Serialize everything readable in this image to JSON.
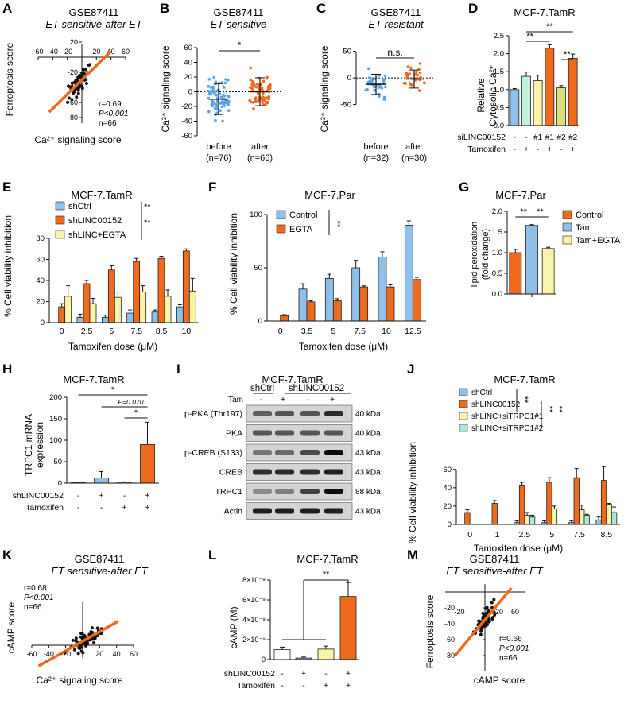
{
  "colors": {
    "blue": "#8fc0ea",
    "orange": "#f06a1e",
    "yellow": "#f9f4a7",
    "teal": "#a8e8d8",
    "olive": "#d8e07a",
    "white": "#ffffff",
    "dark": "#111111"
  },
  "panels": {
    "A": {
      "letter": "A",
      "title": "GSE87411",
      "subtitle": "ET sensitive-after ET",
      "ylabel": "Ferroptosis score",
      "xlabel": "Ca²⁺ signaling score",
      "xticks": [
        "-60",
        "-40",
        "-20",
        "20",
        "40",
        "60"
      ],
      "yticks": [
        "20",
        "-20",
        "-40",
        "-60",
        "-80"
      ],
      "stats": [
        "r=0.69",
        "P<0.001",
        "n=66"
      ]
    },
    "B": {
      "letter": "B",
      "title": "GSE87411",
      "subtitle": "ET sensitive",
      "ylabel": "Ca²⁺ signaling score",
      "yticks": [
        "60",
        "40",
        "20",
        "0",
        "-20",
        "-40",
        "-60"
      ],
      "groups": [
        "before",
        "after"
      ],
      "ns": [
        "(n=76)",
        "(n=66)"
      ],
      "sig": "*"
    },
    "C": {
      "letter": "C",
      "title": "GSE87411",
      "subtitle": "ET resistant",
      "ylabel": "Ca²⁺ signaling score",
      "yticks": [
        "50",
        "0",
        "-50"
      ],
      "groups": [
        "before",
        "after"
      ],
      "ns": [
        "(n=32)",
        "(n=30)"
      ],
      "sig": "n.s."
    },
    "D": {
      "letter": "D",
      "title": "MCF-7.TamR",
      "ylabel1": "Relative",
      "ylabel2": "Cytosolic Ca²⁺",
      "yticks": [
        "2.5",
        "2.0",
        "1.5",
        "1.0",
        "0.5",
        "0.0"
      ],
      "row1_label": "siLINC00152",
      "row1": [
        "-",
        "-",
        "#1",
        "#1",
        "#2",
        "#2"
      ],
      "row2_label": "Tamoxifen",
      "row2": [
        "-",
        "+",
        "-",
        "+",
        "-",
        "+"
      ],
      "sig": [
        "**",
        "**",
        "**"
      ]
    },
    "E": {
      "letter": "E",
      "title": "MCF-7.TamR",
      "legend": [
        "shCtrl",
        "shLINC00152",
        "shLINC+EGTA"
      ],
      "sig": [
        "**",
        "**"
      ],
      "ylabel": "% Cell viability inhibition",
      "xlabel": "Tamoxifen dose (μM)",
      "xticks": [
        "0",
        "2.5",
        "5",
        "7.5",
        "8.5",
        "10"
      ],
      "yticks": [
        "80",
        "60",
        "40",
        "20",
        "0"
      ]
    },
    "F": {
      "letter": "F",
      "title": "MCF-7.Par",
      "legend": [
        "Control",
        "EGTA"
      ],
      "sig": "**",
      "ylabel": "% Cell viability inhibition",
      "xlabel": "Tamoxifen dose (μM)",
      "xticks": [
        "0",
        "3.5",
        "5",
        "7.5",
        "10",
        "12.5"
      ],
      "yticks": [
        "100",
        "50",
        "0"
      ]
    },
    "G": {
      "letter": "G",
      "title": "MCF-7.Par",
      "legend": [
        "Control",
        "Tam",
        "Tam+EGTA"
      ],
      "ylabel1": "lipid peroxidation",
      "ylabel2": "(fold change)",
      "yticks": [
        "2.0",
        "1.5",
        "1.0",
        "0.5",
        "0.0"
      ],
      "sig": [
        "**",
        "**"
      ]
    },
    "H": {
      "letter": "H",
      "title": "MCF-7.TamR",
      "ylabel1": "TRPC1 mRNA",
      "ylabel2": "expression",
      "yticks": [
        "200",
        "150",
        "100",
        "50",
        "0"
      ],
      "row1_label": "shLINC00152",
      "row1": [
        "-",
        "+",
        "-",
        "+"
      ],
      "row2_label": "Tamoxifen",
      "row2": [
        "-",
        "-",
        "+",
        "+"
      ],
      "sig": [
        "*",
        "P=0.070",
        "*"
      ]
    },
    "I": {
      "letter": "I",
      "title": "MCF-7.TamR",
      "groups": [
        "shCtrl",
        "shLINC00152"
      ],
      "tam_label": "Tam",
      "tam": [
        "-",
        "+",
        "-",
        "+"
      ],
      "rows": [
        {
          "name": "p-PKA (Thr197)",
          "kda": "40 kDa"
        },
        {
          "name": "PKA",
          "kda": "40 kDa"
        },
        {
          "name": "p-CREB (S133)",
          "kda": "43 kDa"
        },
        {
          "name": "CREB",
          "kda": "43 kDa"
        },
        {
          "name": "TRPC1",
          "kda": "88 kDa"
        },
        {
          "name": "Actin",
          "kda": "43 kDa"
        }
      ]
    },
    "J": {
      "letter": "J",
      "title": "MCF-7.TamR",
      "legend": [
        "shCtrl",
        "shLINC00152",
        "shLINC+siTRPC1#1",
        "shLINC+siTRPC1#2"
      ],
      "sig": [
        "**",
        "**",
        "**"
      ],
      "ylabel": "% Cell viability inhibition",
      "xlabel": "Tamoxifen dose (μM)",
      "xticks": [
        "0",
        "1",
        "2.5",
        "5",
        "7.5",
        "8.5"
      ],
      "yticks": [
        "60",
        "40",
        "20",
        "0"
      ]
    },
    "K": {
      "letter": "K",
      "title": "GSE87411",
      "subtitle": "ET sensitive-after ET",
      "ylabel": "cAMP score",
      "xlabel": "Ca²⁺ signaling score",
      "xticks": [
        "-60",
        "-40",
        "-20",
        "20",
        "40",
        "60"
      ],
      "stats": [
        "r=0.68",
        "P<0.001",
        "n=66"
      ]
    },
    "L": {
      "letter": "L",
      "title": "MCF-7.TamR",
      "ylabel": "cAMP (M)",
      "yticks": [
        "8×10⁻⁹",
        "6×10⁻⁹",
        "4×10⁻⁹",
        "2×10⁻⁹",
        "0"
      ],
      "row1_label": "shLINC00152",
      "row1": [
        "-",
        "+",
        "-",
        "+"
      ],
      "row2_label": "Tamoxifen",
      "row2": [
        "-",
        "-",
        "+",
        "+"
      ],
      "sig": "**"
    },
    "M": {
      "letter": "M",
      "title": "GSE87411",
      "subtitle": "ET sensitive-after ET",
      "ylabel": "Ferroptosis score",
      "xlabel": "cAMP score",
      "xticks": [
        "-20",
        "20",
        "60"
      ],
      "yticks": [
        "-20",
        "-40",
        "-60",
        "-80"
      ],
      "stats": [
        "r=0.66",
        "P<0.001",
        "n=66"
      ]
    }
  },
  "chart_data": [
    {
      "id": "A",
      "type": "scatter",
      "title": "GSE87411 ET sensitive-after ET",
      "xlabel": "Ca²⁺ signaling score",
      "ylabel": "Ferroptosis score",
      "xlim": [
        -60,
        60
      ],
      "ylim": [
        -85,
        25
      ],
      "fit": {
        "slope": 0.95,
        "intercept": -30
      },
      "r": 0.69,
      "n": 66
    },
    {
      "id": "B",
      "type": "scatter",
      "title": "GSE87411 ET sensitive",
      "ylabel": "Ca²⁺ signaling score",
      "categories": [
        "before",
        "after"
      ],
      "means": [
        -10,
        0
      ],
      "sd": [
        21,
        19
      ],
      "ylim": [
        -60,
        60
      ],
      "n": [
        76,
        66
      ]
    },
    {
      "id": "C",
      "type": "scatter",
      "title": "GSE87411 ET resistant",
      "ylabel": "Ca²⁺ signaling score",
      "categories": [
        "before",
        "after"
      ],
      "means": [
        -12,
        -2
      ],
      "sd": [
        19,
        17
      ],
      "ylim": [
        -70,
        60
      ],
      "n": [
        32,
        30
      ]
    },
    {
      "id": "D",
      "type": "bar",
      "title": "MCF-7.TamR",
      "ylabel": "Relative Cytosolic Ca²⁺",
      "categories": [
        "-/-",
        "-/+",
        "#1/-",
        "#1/+",
        "#2/-",
        "#2/+"
      ],
      "values": [
        1.0,
        1.37,
        1.25,
        2.15,
        1.05,
        1.87
      ],
      "errors": [
        0.03,
        0.12,
        0.15,
        0.1,
        0.06,
        0.12
      ],
      "ylim": [
        0,
        2.5
      ]
    },
    {
      "id": "E",
      "type": "bar",
      "title": "MCF-7.TamR",
      "xlabel": "Tamoxifen dose (μM)",
      "ylabel": "% Cell viability inhibition",
      "categories": [
        "0",
        "2.5",
        "5",
        "7.5",
        "8.5",
        "10"
      ],
      "ylim": [
        0,
        80
      ],
      "series": [
        {
          "name": "shCtrl",
          "values": [
            0,
            5,
            5,
            9,
            10,
            15
          ],
          "errors": [
            0,
            3,
            2,
            3,
            2,
            2
          ]
        },
        {
          "name": "shLINC00152",
          "values": [
            15,
            37,
            50,
            58,
            61,
            68
          ],
          "errors": [
            3,
            3,
            4,
            3,
            2,
            2
          ]
        },
        {
          "name": "shLINC+EGTA",
          "values": [
            25,
            18,
            24,
            29,
            25,
            30
          ],
          "errors": [
            10,
            5,
            5,
            6,
            6,
            12
          ]
        }
      ]
    },
    {
      "id": "F",
      "type": "bar",
      "title": "MCF-7.Par",
      "xlabel": "Tamoxifen dose (μM)",
      "ylabel": "% Cell viability inhibition",
      "categories": [
        "0",
        "3.5",
        "5",
        "7.5",
        "10",
        "12.5"
      ],
      "ylim": [
        0,
        100
      ],
      "series": [
        {
          "name": "Control",
          "values": [
            0,
            30,
            40,
            50,
            60,
            90
          ],
          "errors": [
            0,
            5,
            4,
            7,
            5,
            4
          ]
        },
        {
          "name": "EGTA",
          "values": [
            5,
            18,
            19,
            32,
            32,
            39
          ],
          "errors": [
            1,
            1,
            2,
            1,
            2,
            2
          ]
        }
      ]
    },
    {
      "id": "G",
      "type": "bar",
      "title": "MCF-7.Par",
      "ylabel": "lipid peroxidation (fold change)",
      "categories": [
        "Control",
        "Tam",
        "Tam+EGTA"
      ],
      "values": [
        1.0,
        1.66,
        1.1
      ],
      "errors": [
        0.08,
        0.02,
        0.03
      ],
      "ylim": [
        0,
        2.0
      ]
    },
    {
      "id": "H",
      "type": "bar",
      "title": "MCF-7.TamR",
      "ylabel": "TRPC1 mRNA expression",
      "categories": [
        "-/-",
        "+/-",
        "-/+",
        "+/+"
      ],
      "values": [
        1,
        12,
        2,
        90
      ],
      "errors": [
        0,
        15,
        1,
        52
      ],
      "ylim": [
        0,
        200
      ]
    },
    {
      "id": "J",
      "type": "bar",
      "title": "MCF-7.TamR",
      "xlabel": "Tamoxifen dose (μM)",
      "ylabel": "% Cell viability inhibition",
      "categories": [
        "0",
        "1",
        "2.5",
        "5",
        "7.5",
        "8.5"
      ],
      "ylim": [
        0,
        65
      ],
      "series": [
        {
          "name": "shCtrl",
          "values": [
            0,
            0,
            2,
            2,
            2,
            5
          ],
          "errors": [
            0,
            0,
            2,
            2,
            2,
            3
          ]
        },
        {
          "name": "shLINC00152",
          "values": [
            13,
            23,
            42,
            46,
            51,
            48
          ],
          "errors": [
            3,
            3,
            4,
            5,
            10,
            15
          ]
        },
        {
          "name": "shLINC+siTRPC1#1",
          "values": [
            0,
            0,
            10,
            17,
            16,
            22
          ],
          "errors": [
            0,
            0,
            3,
            3,
            5,
            1
          ]
        },
        {
          "name": "shLINC+siTRPC1#2",
          "values": [
            0,
            0,
            8,
            0,
            10,
            13
          ],
          "errors": [
            0,
            0,
            2,
            0,
            1,
            6
          ]
        }
      ]
    },
    {
      "id": "K",
      "type": "scatter",
      "title": "GSE87411 ET sensitive-after ET",
      "xlabel": "Ca²⁺ signaling score",
      "ylabel": "cAMP score",
      "xlim": [
        -60,
        60
      ],
      "r": 0.68,
      "n": 66
    },
    {
      "id": "L",
      "type": "bar",
      "title": "MCF-7.TamR",
      "ylabel": "cAMP (M)",
      "categories": [
        "-/-",
        "+/-",
        "-/+",
        "+/+"
      ],
      "values": [
        1e-09,
        1.5e-10,
        1.05e-09,
        6.35e-09
      ],
      "errors": [
        2.5e-10,
        1e-10,
        3e-10,
        1.4e-09
      ],
      "ylim": [
        0,
        8e-09
      ]
    },
    {
      "id": "M",
      "type": "scatter",
      "title": "GSE87411 ET sensitive-after ET",
      "xlabel": "cAMP score",
      "ylabel": "Ferroptosis score",
      "xlim": [
        -60,
        60
      ],
      "ylim": [
        -85,
        25
      ],
      "r": 0.66,
      "n": 66
    }
  ]
}
